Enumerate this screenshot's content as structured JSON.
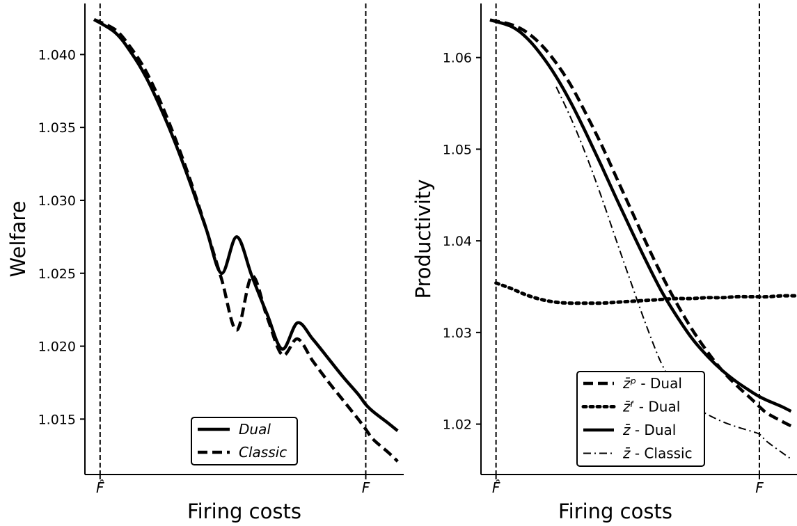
{
  "chart_data": [
    {
      "type": "line",
      "xlabel": "Firing costs",
      "ylabel": "Welfare",
      "xlim": [
        -0.05,
        1.0
      ],
      "ylim": [
        1.0112,
        1.0435
      ],
      "x_ticks": [
        {
          "x": 0,
          "label": "F̂"
        },
        {
          "x": 0.875,
          "label": "F"
        }
      ],
      "y_ticks": [
        1.015,
        1.02,
        1.025,
        1.03,
        1.035,
        1.04
      ],
      "y_tick_labels": [
        "1.015",
        "1.020",
        "1.025",
        "1.030",
        "1.035",
        "1.040"
      ],
      "vlines": [
        0,
        0.875
      ],
      "legend_position": "bottom-right",
      "series": [
        {
          "name": "Dual",
          "style": "solid",
          "width": 4.5,
          "x": [
            -0.02,
            0.05,
            0.1,
            0.15,
            0.2,
            0.25,
            0.3,
            0.35,
            0.4,
            0.45,
            0.5,
            0.55,
            0.6,
            0.65,
            0.7,
            0.75,
            0.8,
            0.85,
            0.875,
            0.9,
            0.95,
            0.98
          ],
          "y": [
            1.0424,
            1.0415,
            1.0402,
            1.0385,
            1.0363,
            1.0338,
            1.031,
            1.028,
            1.025,
            1.0275,
            1.0248,
            1.0222,
            1.0198,
            1.0216,
            1.0205,
            1.0192,
            1.0179,
            1.0167,
            1.016,
            1.0155,
            1.0147,
            1.0142
          ]
        },
        {
          "name": "Classic",
          "style": "dashed",
          "width": 4.5,
          "x": [
            -0.02,
            0.05,
            0.1,
            0.15,
            0.2,
            0.25,
            0.3,
            0.35,
            0.4,
            0.45,
            0.5,
            0.55,
            0.6,
            0.65,
            0.7,
            0.75,
            0.8,
            0.85,
            0.875,
            0.9,
            0.95,
            0.98
          ],
          "y": [
            1.0424,
            1.0417,
            1.0405,
            1.0389,
            1.0367,
            1.0341,
            1.0312,
            1.028,
            1.0246,
            1.0211,
            1.0248,
            1.022,
            1.0194,
            1.0205,
            1.019,
            1.0176,
            1.0163,
            1.015,
            1.0143,
            1.0136,
            1.0127,
            1.0121
          ]
        }
      ]
    },
    {
      "type": "line",
      "xlabel": "Firing costs",
      "ylabel": "Productivity",
      "xlim": [
        -0.05,
        1.0
      ],
      "ylim": [
        1.0145,
        1.0659
      ],
      "x_ticks": [
        {
          "x": 0,
          "label": "F̂"
        },
        {
          "x": 0.875,
          "label": "F"
        }
      ],
      "y_ticks": [
        1.02,
        1.03,
        1.04,
        1.05,
        1.06
      ],
      "y_tick_labels": [
        "1.02",
        "1.03",
        "1.04",
        "1.05",
        "1.06"
      ],
      "vlines": [
        0,
        0.875
      ],
      "legend_position": "bottom-right",
      "series": [
        {
          "name": " - Dual",
          "symbol": "z̄ᵖ",
          "style": "dashed",
          "width": 4.5,
          "x": [
            -0.02,
            0.05,
            0.1,
            0.15,
            0.2,
            0.25,
            0.3,
            0.35,
            0.4,
            0.45,
            0.5,
            0.55,
            0.6,
            0.65,
            0.7,
            0.75,
            0.8,
            0.85,
            0.875,
            0.9,
            0.95,
            0.98
          ],
          "y": [
            1.0641,
            1.0636,
            1.0628,
            1.0614,
            1.0594,
            1.0569,
            1.0538,
            1.0505,
            1.0469,
            1.0433,
            1.0397,
            1.0363,
            1.0332,
            1.0304,
            1.028,
            1.0259,
            1.0242,
            1.0227,
            1.0219,
            1.0212,
            1.0203,
            1.0198
          ]
        },
        {
          "name": " - Dual",
          "symbol": "z̄ᶠ",
          "style": "dotted",
          "width": 5,
          "x": [
            0.0,
            0.05,
            0.1,
            0.15,
            0.2,
            0.25,
            0.3,
            0.35,
            0.4,
            0.45,
            0.5,
            0.55,
            0.6,
            0.65,
            0.7,
            0.75,
            0.8,
            0.85,
            0.9,
            0.95,
            1.0
          ],
          "y": [
            1.0354,
            1.0348,
            1.0341,
            1.0336,
            1.0333,
            1.0332,
            1.0332,
            1.0332,
            1.0333,
            1.0334,
            1.0335,
            1.0336,
            1.0337,
            1.0337,
            1.0338,
            1.0338,
            1.0339,
            1.0339,
            1.0339,
            1.034,
            1.034
          ]
        },
        {
          "name": " - Dual",
          "symbol": "z̄",
          "style": "solid",
          "width": 4.5,
          "x": [
            -0.02,
            0.05,
            0.1,
            0.15,
            0.2,
            0.25,
            0.3,
            0.35,
            0.4,
            0.45,
            0.5,
            0.55,
            0.6,
            0.65,
            0.7,
            0.75,
            0.8,
            0.85,
            0.875,
            0.9,
            0.95,
            0.98
          ],
          "y": [
            1.0641,
            1.0634,
            1.0622,
            1.0603,
            1.0579,
            1.055,
            1.0517,
            1.0482,
            1.0446,
            1.0411,
            1.0377,
            1.0345,
            1.0318,
            1.0294,
            1.0275,
            1.0259,
            1.0246,
            1.0235,
            1.023,
            1.0226,
            1.0219,
            1.0214
          ]
        },
        {
          "name": " - Classic",
          "symbol": "z̄",
          "style": "dashdot",
          "width": 2,
          "x": [
            0.2,
            0.25,
            0.3,
            0.35,
            0.4,
            0.45,
            0.5,
            0.55,
            0.6,
            0.65,
            0.7,
            0.75,
            0.8,
            0.85,
            0.875,
            0.9,
            0.95,
            0.98
          ],
          "y": [
            1.0568,
            1.0533,
            1.0493,
            1.0448,
            1.04,
            1.0353,
            1.0307,
            1.0266,
            1.0238,
            1.0221,
            1.0211,
            1.0203,
            1.0197,
            1.0192,
            1.0189,
            1.0181,
            1.0169,
            1.0162
          ]
        }
      ]
    }
  ]
}
